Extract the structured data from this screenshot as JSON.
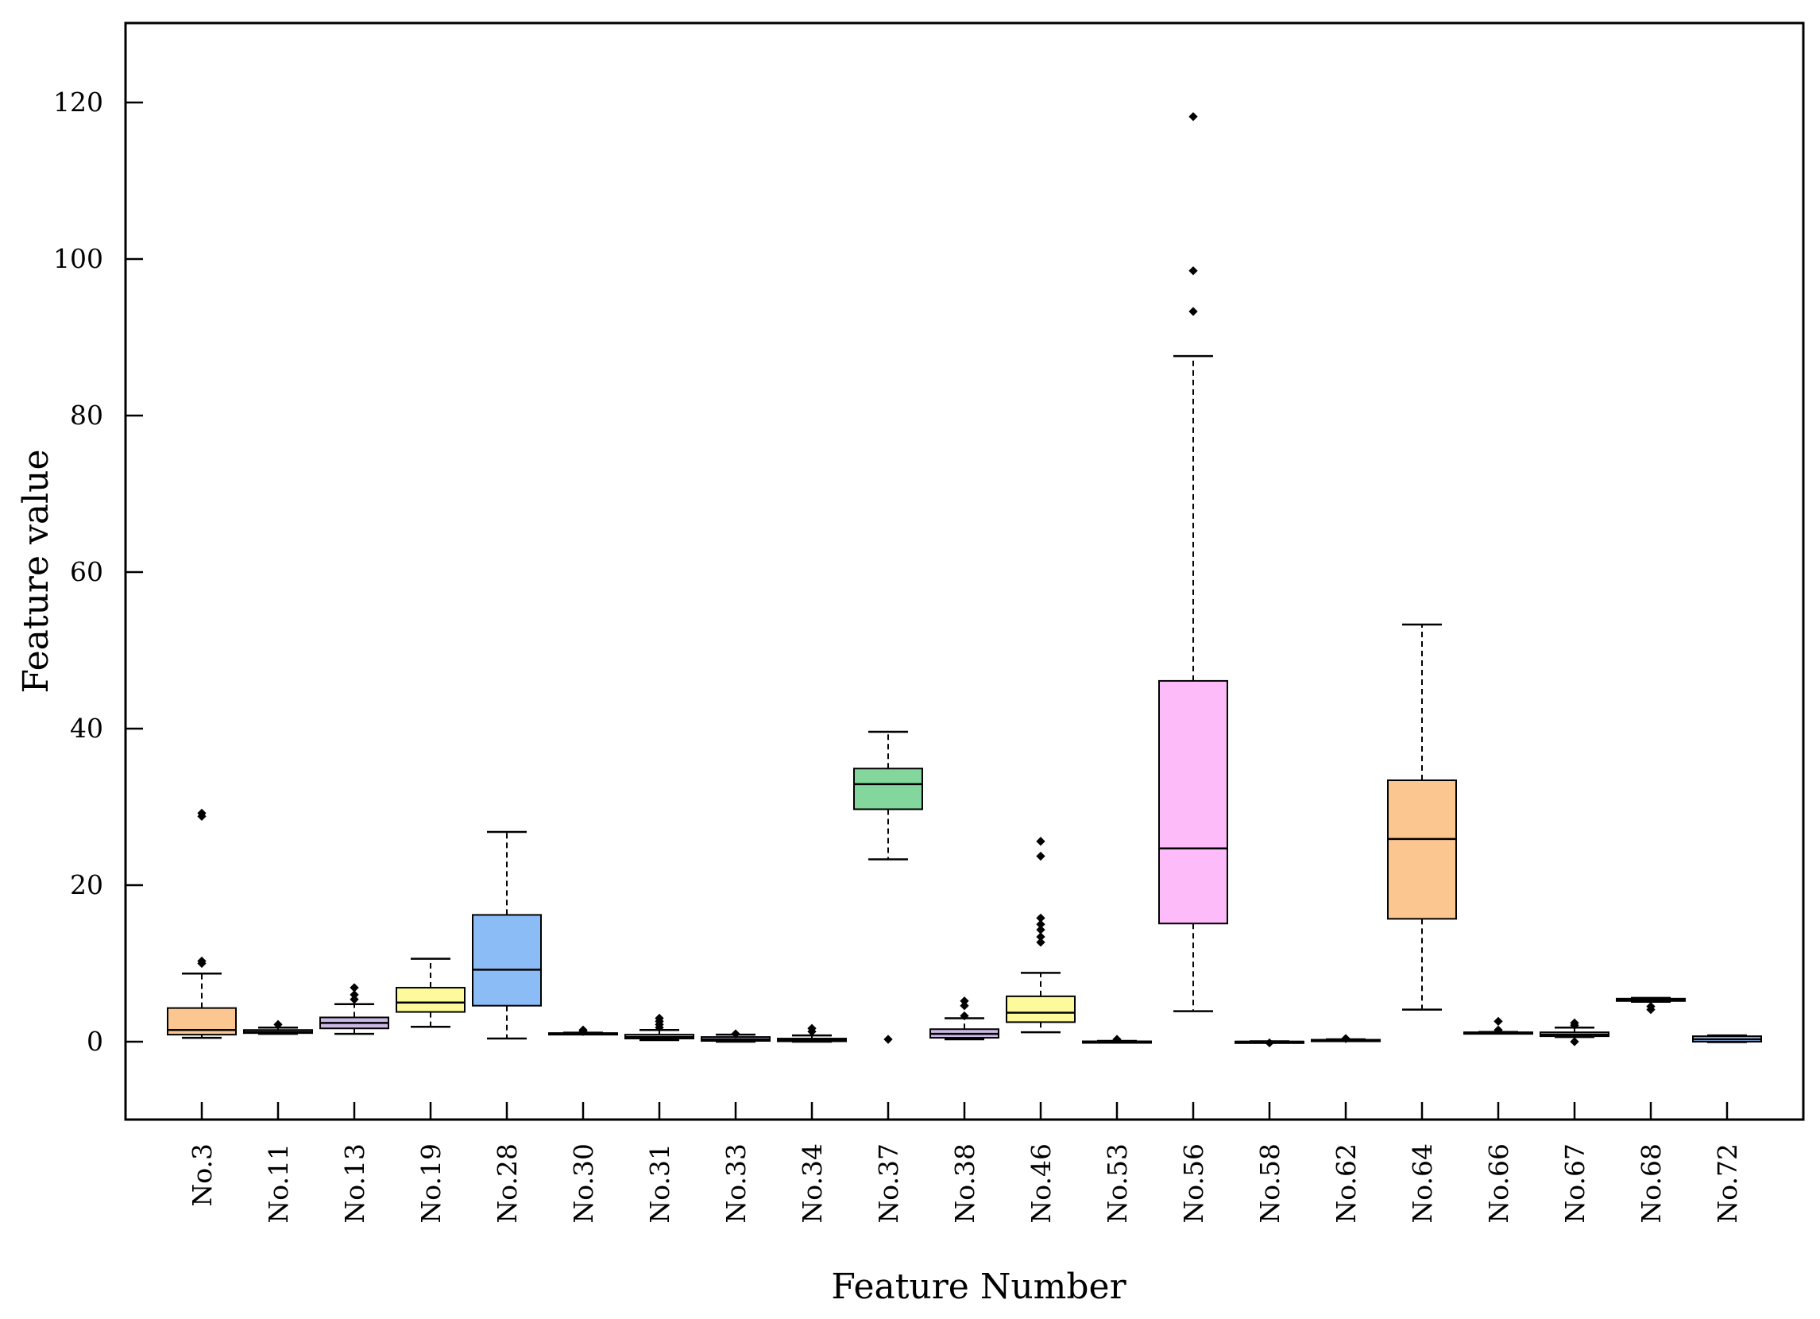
{
  "chart_data": {
    "type": "boxplot",
    "title": "",
    "xlabel": "Feature Number",
    "ylabel": "Feature value",
    "ylim": [
      -10,
      130
    ],
    "yticks": [
      0,
      20,
      40,
      60,
      80,
      100,
      120
    ],
    "ytick_labels": [
      "0",
      "20",
      "40",
      "60",
      "80",
      "100",
      "120"
    ],
    "grid": false,
    "categories": [
      "No.3",
      "No.11",
      "No.13",
      "No.19",
      "No.28",
      "No.30",
      "No.31",
      "No.33",
      "No.34",
      "No.37",
      "No.38",
      "No.46",
      "No.53",
      "No.56",
      "No.58",
      "No.62",
      "No.64",
      "No.66",
      "No.67",
      "No.68",
      "No.72"
    ],
    "boxes": [
      {
        "name": "No.3",
        "whisker_low": 0.5,
        "q1": 0.9,
        "median": 1.5,
        "q3": 4.3,
        "whisker_high": 8.7,
        "outliers": [
          10.0,
          10.3,
          28.8,
          29.2
        ],
        "color": "#fcc690"
      },
      {
        "name": "No.11",
        "whisker_low": 1.0,
        "q1": 1.1,
        "median": 1.25,
        "q3": 1.5,
        "whisker_high": 1.8,
        "outliers": [
          2.2
        ],
        "color": "#cbb8e4"
      },
      {
        "name": "No.13",
        "whisker_low": 1.0,
        "q1": 1.7,
        "median": 2.4,
        "q3": 3.1,
        "whisker_high": 4.8,
        "outliers": [
          5.4,
          6.0,
          6.9
        ],
        "color": "#cbb8e4"
      },
      {
        "name": "No.19",
        "whisker_low": 1.9,
        "q1": 3.8,
        "median": 5.0,
        "q3": 6.9,
        "whisker_high": 10.6,
        "outliers": [],
        "color": "#fdfa9c"
      },
      {
        "name": "No.28",
        "whisker_low": 0.4,
        "q1": 4.6,
        "median": 9.2,
        "q3": 16.2,
        "whisker_high": 26.8,
        "outliers": [],
        "color": "#8bbcf5"
      },
      {
        "name": "No.30",
        "whisker_low": 1.0,
        "q1": 1.0,
        "median": 1.05,
        "q3": 1.1,
        "whisker_high": 1.15,
        "outliers": [
          1.3,
          1.5
        ],
        "color": "#fdfa9c"
      },
      {
        "name": "No.31",
        "whisker_low": 0.2,
        "q1": 0.4,
        "median": 0.6,
        "q3": 0.9,
        "whisker_high": 1.5,
        "outliers": [
          1.8,
          2.2,
          2.6,
          3.0
        ],
        "color": "#fcc690"
      },
      {
        "name": "No.33",
        "whisker_low": 0.0,
        "q1": 0.1,
        "median": 0.3,
        "q3": 0.6,
        "whisker_high": 0.9,
        "outliers": [
          1.0
        ],
        "color": "#cbb8e4"
      },
      {
        "name": "No.34",
        "whisker_low": 0.0,
        "q1": 0.05,
        "median": 0.2,
        "q3": 0.4,
        "whisker_high": 0.8,
        "outliers": [
          1.3,
          1.7
        ],
        "color": "#8bbcf5"
      },
      {
        "name": "No.37",
        "whisker_low": 23.3,
        "q1": 29.7,
        "median": 32.9,
        "q3": 34.9,
        "whisker_high": 39.6,
        "outliers": [
          0.3
        ],
        "color": "#83d69c"
      },
      {
        "name": "No.38",
        "whisker_low": 0.3,
        "q1": 0.5,
        "median": 1.0,
        "q3": 1.6,
        "whisker_high": 3.0,
        "outliers": [
          3.3,
          4.6,
          5.2
        ],
        "color": "#cbb8e4"
      },
      {
        "name": "No.46",
        "whisker_low": 1.2,
        "q1": 2.5,
        "median": 3.7,
        "q3": 5.8,
        "whisker_high": 8.8,
        "outliers": [
          12.7,
          13.4,
          14.3,
          15.0,
          15.8,
          23.7,
          25.6
        ],
        "color": "#fdfa9c"
      },
      {
        "name": "No.53",
        "whisker_low": 0.0,
        "q1": 0.0,
        "median": 0.0,
        "q3": 0.05,
        "whisker_high": 0.1,
        "outliers": [
          0.3
        ],
        "color": "#fcc690"
      },
      {
        "name": "No.56",
        "whisker_low": 3.9,
        "q1": 15.1,
        "median": 24.7,
        "q3": 46.1,
        "whisker_high": 87.6,
        "outliers": [
          93.3,
          98.5,
          118.2
        ],
        "color": "#fdbbf9"
      },
      {
        "name": "No.58",
        "whisker_low": -0.05,
        "q1": -0.02,
        "median": 0.0,
        "q3": 0.02,
        "whisker_high": 0.05,
        "outliers": [
          -0.15
        ],
        "color": "#8bbcf5"
      },
      {
        "name": "No.62",
        "whisker_low": 0.1,
        "q1": 0.15,
        "median": 0.2,
        "q3": 0.25,
        "whisker_high": 0.3,
        "outliers": [
          0.4
        ],
        "color": "#8bbcf5"
      },
      {
        "name": "No.64",
        "whisker_low": 4.1,
        "q1": 15.7,
        "median": 25.9,
        "q3": 33.4,
        "whisker_high": 53.3,
        "outliers": [],
        "color": "#fcc690"
      },
      {
        "name": "No.66",
        "whisker_low": 1.05,
        "q1": 1.1,
        "median": 1.15,
        "q3": 1.2,
        "whisker_high": 1.25,
        "outliers": [
          1.5,
          2.6
        ],
        "color": "#cbb8e4"
      },
      {
        "name": "No.67",
        "whisker_low": 0.6,
        "q1": 0.7,
        "median": 0.9,
        "q3": 1.2,
        "whisker_high": 1.8,
        "outliers": [
          0.0,
          2.1,
          2.4
        ],
        "color": "#cbb8e4"
      },
      {
        "name": "No.68",
        "whisker_low": 5.1,
        "q1": 5.2,
        "median": 5.35,
        "q3": 5.5,
        "whisker_high": 5.6,
        "outliers": [
          4.1,
          4.5
        ],
        "color": "#fdfa9c"
      },
      {
        "name": "No.72",
        "whisker_low": -0.05,
        "q1": 0.0,
        "median": 0.3,
        "q3": 0.7,
        "whisker_high": 0.8,
        "outliers": [],
        "color": "#8bbcf5"
      }
    ]
  }
}
